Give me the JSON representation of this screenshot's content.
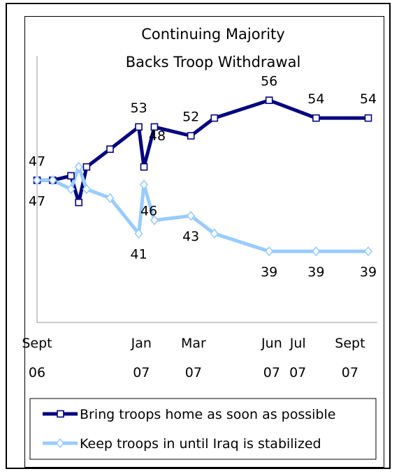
{
  "chart_data": {
    "type": "line",
    "title": [
      "Continuing Majority",
      "Backs Troop Withdrawal"
    ],
    "x_ticks": [
      {
        "label": [
          "Sept",
          "06"
        ],
        "t": 0
      },
      {
        "label": [
          "Jan",
          "07"
        ],
        "t": 4
      },
      {
        "label": [
          "Mar",
          "07"
        ],
        "t": 6
      },
      {
        "label": [
          "Jun",
          "07"
        ],
        "t": 9
      },
      {
        "label": [
          "Jul",
          "07"
        ],
        "t": 10
      },
      {
        "label": [
          "Sept",
          "07"
        ],
        "t": 12
      }
    ],
    "series": [
      {
        "name": "Bring troops home as soon as possible",
        "color": "#000080",
        "marker": "square",
        "points": [
          {
            "t": 0.0,
            "v": 47
          },
          {
            "t": 0.6,
            "v": 47
          },
          {
            "t": 1.3,
            "v": 47.5
          },
          {
            "t": 1.6,
            "v": 44.5
          },
          {
            "t": 1.9,
            "v": 48.5
          },
          {
            "t": 2.8,
            "v": 50.5
          },
          {
            "t": 3.9,
            "v": 53
          },
          {
            "t": 4.1,
            "v": 48.5
          },
          {
            "t": 4.5,
            "v": 53
          },
          {
            "t": 5.9,
            "v": 52
          },
          {
            "t": 6.8,
            "v": 54
          },
          {
            "t": 8.9,
            "v": 56
          },
          {
            "t": 10.7,
            "v": 54
          },
          {
            "t": 12.7,
            "v": 54
          }
        ],
        "labels": [
          {
            "t": 0.0,
            "v": 47,
            "text": "47",
            "pos": "above"
          },
          {
            "t": 3.9,
            "v": 53,
            "text": "53",
            "pos": "above"
          },
          {
            "t": 4.1,
            "v": 48.5,
            "text": "48",
            "pos": "right"
          },
          {
            "t": 5.9,
            "v": 52,
            "text": "52",
            "pos": "above"
          },
          {
            "t": 8.9,
            "v": 56,
            "text": "56",
            "pos": "above"
          },
          {
            "t": 10.7,
            "v": 54,
            "text": "54",
            "pos": "above"
          },
          {
            "t": 12.7,
            "v": 54,
            "text": "54",
            "pos": "above"
          }
        ]
      },
      {
        "name": "Keep troops in until Iraq is stabilized",
        "color": "#99CCFF",
        "marker": "diamond",
        "points": [
          {
            "t": 0.0,
            "v": 47
          },
          {
            "t": 0.6,
            "v": 47
          },
          {
            "t": 1.3,
            "v": 46
          },
          {
            "t": 1.6,
            "v": 48.5
          },
          {
            "t": 1.9,
            "v": 46
          },
          {
            "t": 2.8,
            "v": 45
          },
          {
            "t": 3.9,
            "v": 41
          },
          {
            "t": 4.1,
            "v": 46.5
          },
          {
            "t": 4.5,
            "v": 42.5
          },
          {
            "t": 5.9,
            "v": 43
          },
          {
            "t": 6.8,
            "v": 41
          },
          {
            "t": 8.9,
            "v": 39
          },
          {
            "t": 10.7,
            "v": 39
          },
          {
            "t": 12.7,
            "v": 39
          }
        ],
        "labels": [
          {
            "t": 0.0,
            "v": 47,
            "text": "47",
            "pos": "below"
          },
          {
            "t": 3.9,
            "v": 41,
            "text": "41",
            "pos": "below"
          },
          {
            "t": 4.1,
            "v": 46.5,
            "text": "46",
            "pos": "belowright"
          },
          {
            "t": 5.9,
            "v": 43,
            "text": "43",
            "pos": "below"
          },
          {
            "t": 8.9,
            "v": 39,
            "text": "39",
            "pos": "below"
          },
          {
            "t": 10.7,
            "v": 39,
            "text": "39",
            "pos": "below"
          },
          {
            "t": 12.7,
            "v": 39,
            "text": "39",
            "pos": "below"
          }
        ]
      }
    ],
    "x_range": [
      0,
      12.7
    ],
    "ylim": [
      31,
      61
    ],
    "grid": false,
    "legend": "bottom"
  }
}
